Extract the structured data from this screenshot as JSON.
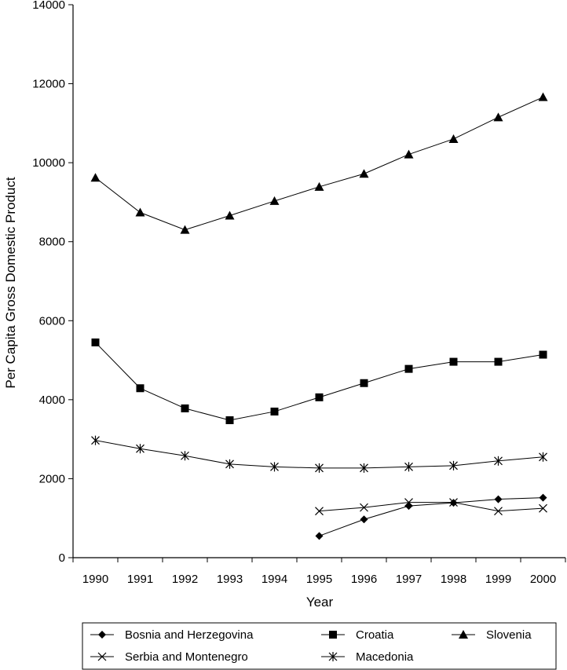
{
  "chart_data": {
    "type": "line",
    "title": "",
    "xlabel": "Year",
    "ylabel": "Per Capita Gross Domestic Product",
    "x": [
      "1990",
      "1991",
      "1992",
      "1993",
      "1994",
      "1995",
      "1996",
      "1997",
      "1998",
      "1999",
      "2000"
    ],
    "ylim": [
      0,
      14000
    ],
    "yticks": [
      "0",
      "2000",
      "4000",
      "6000",
      "8000",
      "10000",
      "12000",
      "14000"
    ],
    "grid": false,
    "legend_position": "bottom",
    "series": [
      {
        "name": "Bosnia and Herzegovina",
        "marker": "diamond",
        "values": [
          null,
          null,
          null,
          null,
          null,
          550,
          970,
          1310,
          1390,
          1480,
          1520
        ]
      },
      {
        "name": "Croatia",
        "marker": "square",
        "values": [
          5450,
          4290,
          3780,
          3480,
          3700,
          4060,
          4420,
          4780,
          4960,
          4960,
          5140
        ]
      },
      {
        "name": "Slovenia",
        "marker": "triangle",
        "values": [
          9620,
          8740,
          8300,
          8660,
          9030,
          9390,
          9720,
          10210,
          10600,
          11150,
          11660
        ]
      },
      {
        "name": "Serbia and Montenegro",
        "marker": "x",
        "values": [
          null,
          null,
          null,
          null,
          null,
          1180,
          1270,
          1400,
          1400,
          1180,
          1250
        ]
      },
      {
        "name": "Macedonia",
        "marker": "asterisk",
        "values": [
          2970,
          2760,
          2580,
          2370,
          2300,
          2270,
          2270,
          2300,
          2330,
          2450,
          2550
        ]
      }
    ],
    "line_color": "#000000"
  }
}
